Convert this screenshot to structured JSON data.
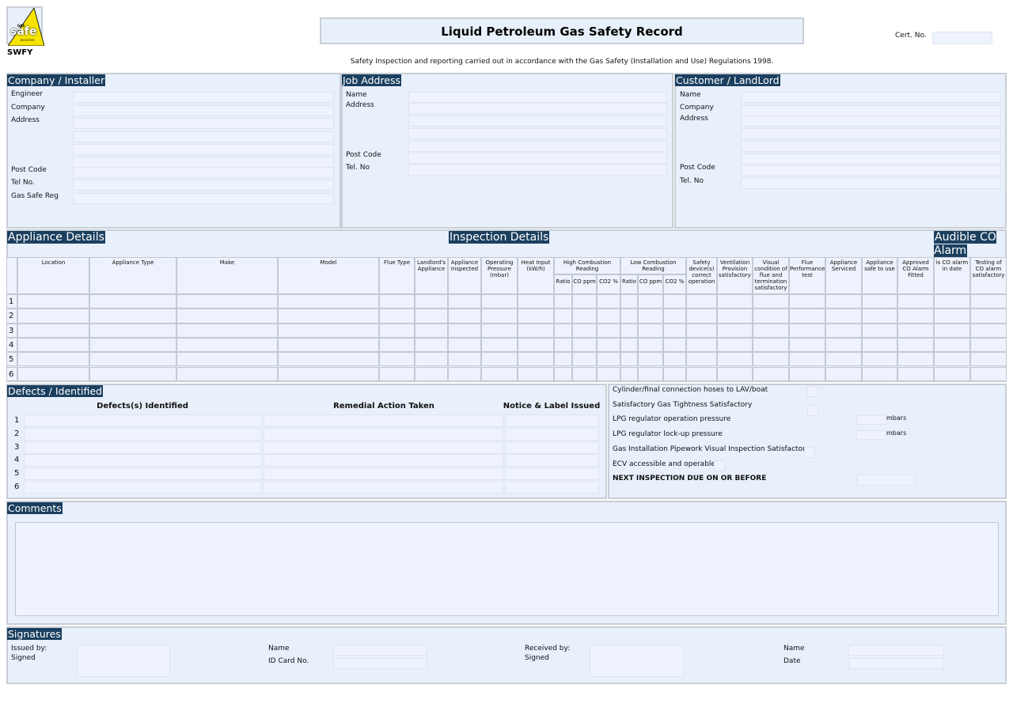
{
  "header": {
    "logo": {
      "top": "GAS",
      "main": "safe",
      "bottom": "REGISTER"
    },
    "brand": "SWFY",
    "title": "Liquid Petroleum Gas Safety Record",
    "cert_label": "Cert. No.",
    "subtitle": "Safety Inspection and reporting carried out in accordance with the Gas Safety (Installation and Use) Regulations 1998."
  },
  "company": {
    "title": "Company / Installer",
    "labels": [
      "Engineer",
      "Company",
      "Address",
      "Post Code",
      "Tel No.",
      "Gas Safe Reg"
    ]
  },
  "job": {
    "title": "Job Address",
    "labels": [
      "Name",
      "Address",
      "Post Code",
      "Tel. No"
    ]
  },
  "customer": {
    "title": "Customer / LandLord",
    "labels": [
      "Name",
      "Company",
      "Address",
      "Post Code",
      "Tel. No"
    ]
  },
  "appliances": {
    "title": "Appliance Details",
    "inspection_title": "Inspection Details",
    "alarm_title": "Audible CO Alarm",
    "columns": [
      "Location",
      "Appliance Type",
      "Make",
      "Model",
      "Flue Type",
      "Landlord's Appliance",
      "Appliance Inspected",
      "Operating Pressure (mbar)",
      "Heat Input (kW/h)",
      "Safety device(s) correct operation",
      "Ventilation Provision satisfactory",
      "Visual condition of flue and termination satisfactory",
      "Flue Performance test",
      "Appliance Serviced",
      "Appliance safe to use",
      "Approved CO Alarm Fitted",
      "is CO alarm in date",
      "Testing of CO alarm satisfactory"
    ],
    "high_combustion": {
      "title": "High Combustion Reading",
      "columns": [
        "Ratio",
        "CO ppm",
        "CO2 %"
      ]
    },
    "low_combustion": {
      "title": "Low Combustion Reading",
      "columns": [
        "Ratio",
        "CO ppm",
        "CO2 %"
      ]
    },
    "rows": [
      "1",
      "2",
      "3",
      "4",
      "5",
      "6"
    ]
  },
  "defects": {
    "title": "Defects / Identified",
    "headers": [
      "Defects(s) Identified",
      "Remedial Action Taken",
      "Notice & Label Issued"
    ],
    "rows": [
      "1",
      "2",
      "3",
      "4",
      "5",
      "6"
    ]
  },
  "checks": {
    "items": [
      "Cylinder/final connection hoses to LAV/boat",
      "Satisfactory  Gas Tightness Satisfactory",
      "LPG regulator operation pressure",
      "LPG regulator lock-up pressure",
      "Gas Installation Pipework Visual Inspection Satisfactory",
      "ECV accessible and operable",
      "NEXT INSPECTION DUE ON OR BEFORE"
    ],
    "unit": "mbars"
  },
  "comments": {
    "title": "Comments"
  },
  "signatures": {
    "title": "Signatures",
    "issued_by": "Issued by:",
    "signed": "Signed",
    "name": "Name",
    "id_card": "ID Card No.",
    "received_by": "Received by:",
    "signed2": "Signed",
    "name2": "Name",
    "date": "Date"
  }
}
